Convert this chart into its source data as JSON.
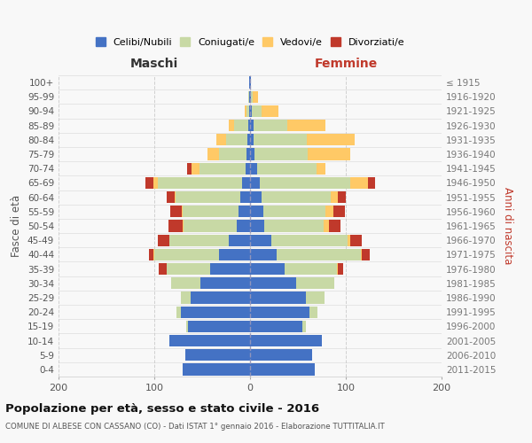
{
  "age_groups": [
    "0-4",
    "5-9",
    "10-14",
    "15-19",
    "20-24",
    "25-29",
    "30-34",
    "35-39",
    "40-44",
    "45-49",
    "50-54",
    "55-59",
    "60-64",
    "65-69",
    "70-74",
    "75-79",
    "80-84",
    "85-89",
    "90-94",
    "95-99",
    "100+"
  ],
  "birth_years": [
    "2011-2015",
    "2006-2010",
    "2001-2005",
    "1996-2000",
    "1991-1995",
    "1986-1990",
    "1981-1985",
    "1976-1980",
    "1971-1975",
    "1966-1970",
    "1961-1965",
    "1956-1960",
    "1951-1955",
    "1946-1950",
    "1941-1945",
    "1936-1940",
    "1931-1935",
    "1926-1930",
    "1921-1925",
    "1916-1920",
    "≤ 1915"
  ],
  "male": {
    "celibi": [
      70,
      68,
      84,
      65,
      72,
      62,
      52,
      42,
      32,
      22,
      14,
      12,
      10,
      8,
      5,
      4,
      3,
      2,
      1,
      1,
      1
    ],
    "coniugati": [
      0,
      0,
      0,
      2,
      5,
      10,
      30,
      45,
      68,
      62,
      55,
      58,
      68,
      88,
      48,
      28,
      22,
      15,
      3,
      1,
      0
    ],
    "vedovi": [
      0,
      0,
      0,
      0,
      0,
      0,
      0,
      0,
      1,
      0,
      1,
      1,
      1,
      5,
      8,
      12,
      10,
      5,
      2,
      0,
      0
    ],
    "divorziati": [
      0,
      0,
      0,
      0,
      0,
      0,
      0,
      8,
      5,
      12,
      15,
      12,
      8,
      8,
      5,
      0,
      0,
      0,
      0,
      0,
      0
    ]
  },
  "female": {
    "celibi": [
      68,
      65,
      75,
      55,
      62,
      58,
      48,
      36,
      28,
      22,
      15,
      14,
      12,
      10,
      7,
      5,
      4,
      4,
      2,
      1,
      1
    ],
    "coniugati": [
      0,
      0,
      0,
      3,
      8,
      20,
      40,
      55,
      88,
      80,
      62,
      65,
      72,
      95,
      62,
      55,
      55,
      35,
      10,
      2,
      0
    ],
    "vedovi": [
      0,
      0,
      0,
      0,
      0,
      0,
      0,
      1,
      1,
      3,
      5,
      8,
      8,
      18,
      10,
      45,
      50,
      40,
      18,
      5,
      0
    ],
    "divorziati": [
      0,
      0,
      0,
      0,
      0,
      0,
      0,
      5,
      8,
      12,
      12,
      12,
      8,
      8,
      0,
      0,
      0,
      0,
      0,
      0,
      0
    ]
  },
  "colors": {
    "celibi": "#4472C4",
    "coniugati": "#c8d9a5",
    "vedovi": "#ffc966",
    "divorziati": "#c0392b"
  },
  "legend_labels": [
    "Celibi/Nubili",
    "Coniugati/e",
    "Vedovi/e",
    "Divorziati/e"
  ],
  "title": "Popolazione per età, sesso e stato civile - 2016",
  "subtitle": "COMUNE DI ALBESE CON CASSANO (CO) - Dati ISTAT 1° gennaio 2016 - Elaborazione TUTTITALIA.IT",
  "ylabel_left": "Fasce di età",
  "ylabel_right": "Anni di nascita",
  "xlabel_left": "Maschi",
  "xlabel_right": "Femmine",
  "xlim": 200,
  "background_color": "#f8f8f8",
  "grid_color": "#cccccc"
}
